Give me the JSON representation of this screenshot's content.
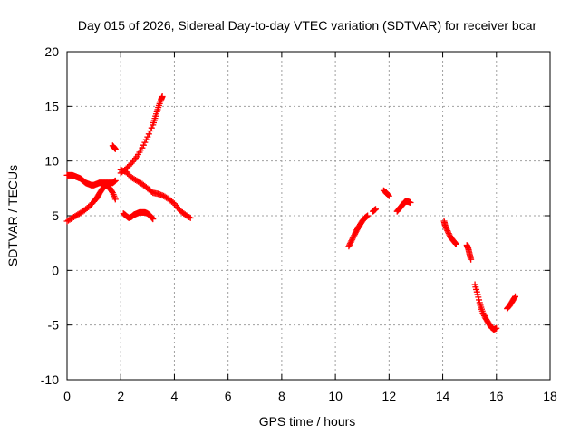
{
  "chart_data": {
    "type": "scatter",
    "title": "Day 015 of 2026, Sidereal Day-to-day VTEC variation (SDTVAR) for receiver bcar",
    "xlabel": "GPS time / hours",
    "ylabel": "SDTVAR / TECUs",
    "xlim": [
      0,
      18
    ],
    "ylim": [
      -10,
      20
    ],
    "xticks": [
      0,
      2,
      4,
      6,
      8,
      10,
      12,
      14,
      16,
      18
    ],
    "yticks": [
      -10,
      -5,
      0,
      5,
      10,
      15,
      20
    ],
    "grid": true,
    "legend": "none",
    "marker": "+",
    "series": [
      {
        "name": "trace-1",
        "color": "#ff0000",
        "x": [
          0.0,
          0.1,
          0.2,
          0.3,
          0.4,
          0.5,
          0.6,
          0.7,
          0.8,
          0.9,
          1.0,
          1.1,
          1.2,
          1.3,
          1.4,
          1.5,
          1.6,
          1.7,
          1.8
        ],
        "y": [
          8.7,
          8.7,
          8.7,
          8.6,
          8.5,
          8.4,
          8.2,
          8.0,
          7.9,
          7.8,
          7.8,
          7.9,
          8.0,
          8.0,
          8.0,
          8.0,
          8.0,
          8.0,
          8.2
        ]
      },
      {
        "name": "trace-2",
        "color": "#ff0000",
        "x": [
          0.0,
          0.2,
          0.4,
          0.6,
          0.8,
          1.0,
          1.1,
          1.2,
          1.3,
          1.4,
          1.5,
          1.6,
          1.7,
          1.8
        ],
        "y": [
          4.5,
          4.8,
          5.1,
          5.4,
          5.8,
          6.3,
          6.6,
          7.0,
          7.4,
          7.7,
          7.7,
          7.5,
          7.1,
          6.5
        ]
      },
      {
        "name": "trace-3",
        "color": "#ff0000",
        "x": [
          1.7,
          1.8
        ],
        "y": [
          11.4,
          11.1
        ]
      },
      {
        "name": "trace-4",
        "color": "#ff0000",
        "x": [
          2.0,
          2.2,
          2.4,
          2.6,
          2.8,
          3.0,
          3.2,
          3.4,
          3.6,
          3.8,
          4.0,
          4.2,
          4.4,
          4.6
        ],
        "y": [
          9.2,
          9.0,
          8.5,
          8.2,
          7.9,
          7.5,
          7.1,
          7.0,
          6.8,
          6.5,
          6.1,
          5.5,
          5.1,
          4.8
        ]
      },
      {
        "name": "trace-5",
        "color": "#ff0000",
        "x": [
          2.0,
          2.2,
          2.4,
          2.6,
          2.8,
          3.0,
          3.2,
          3.3,
          3.4,
          3.5,
          3.55
        ],
        "y": [
          8.9,
          9.3,
          9.8,
          10.4,
          11.2,
          12.2,
          13.3,
          14.1,
          14.9,
          15.6,
          15.9
        ]
      },
      {
        "name": "trace-6",
        "color": "#ff0000",
        "x": [
          2.1,
          2.2,
          2.3,
          2.4,
          2.5,
          2.6,
          2.7,
          2.8,
          2.9,
          3.0,
          3.1,
          3.2
        ],
        "y": [
          5.2,
          5.0,
          4.8,
          4.9,
          5.1,
          5.2,
          5.3,
          5.3,
          5.3,
          5.2,
          5.0,
          4.7
        ]
      },
      {
        "name": "trace-7",
        "color": "#ff0000",
        "x": [
          10.5,
          10.6,
          10.7,
          10.8,
          10.9,
          11.0,
          11.1,
          11.2
        ],
        "y": [
          2.2,
          2.7,
          3.2,
          3.7,
          4.1,
          4.5,
          4.8,
          5.0
        ]
      },
      {
        "name": "trace-8",
        "color": "#ff0000",
        "x": [
          11.4,
          11.5
        ],
        "y": [
          5.4,
          5.6
        ]
      },
      {
        "name": "trace-9",
        "color": "#ff0000",
        "x": [
          11.8,
          11.9,
          12.0
        ],
        "y": [
          7.3,
          7.1,
          6.8
        ]
      },
      {
        "name": "trace-10",
        "color": "#ff0000",
        "x": [
          12.3,
          12.4,
          12.5,
          12.6,
          12.7,
          12.8
        ],
        "y": [
          5.4,
          5.7,
          6.0,
          6.3,
          6.3,
          6.2
        ]
      },
      {
        "name": "trace-11",
        "color": "#ff0000",
        "x": [
          14.05,
          14.1,
          14.2,
          14.3,
          14.4,
          14.5
        ],
        "y": [
          4.5,
          4.0,
          3.5,
          3.0,
          2.7,
          2.4
        ]
      },
      {
        "name": "trace-12",
        "color": "#ff0000",
        "x": [
          14.9,
          14.95,
          15.0,
          15.05
        ],
        "y": [
          2.3,
          2.0,
          1.5,
          1.0
        ]
      },
      {
        "name": "trace-13",
        "color": "#ff0000",
        "x": [
          15.2,
          15.3,
          15.4,
          15.5,
          15.6,
          15.7,
          15.8,
          15.9,
          16.0
        ],
        "y": [
          -1.3,
          -2.2,
          -3.2,
          -3.9,
          -4.4,
          -4.8,
          -5.2,
          -5.4,
          -5.3
        ]
      },
      {
        "name": "trace-14",
        "color": "#ff0000",
        "x": [
          16.4,
          16.5,
          16.6,
          16.7
        ],
        "y": [
          -3.5,
          -3.2,
          -2.8,
          -2.4
        ]
      }
    ]
  }
}
